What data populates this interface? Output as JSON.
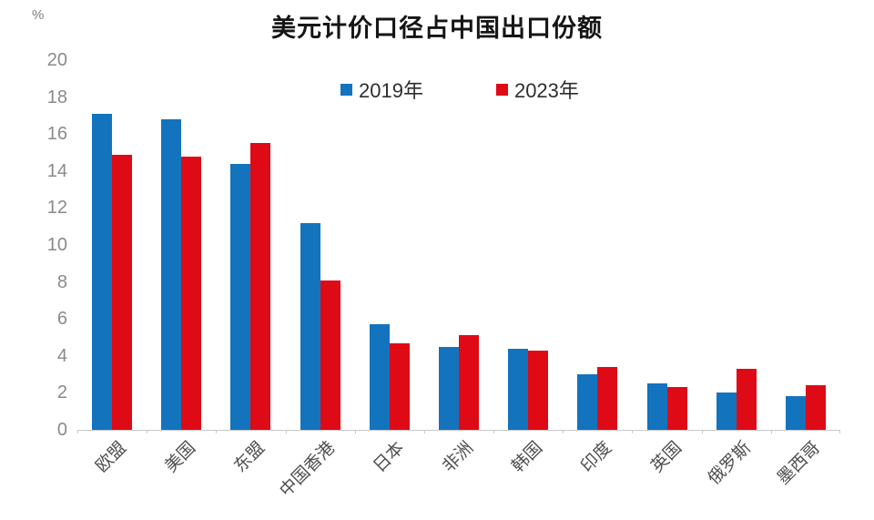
{
  "chart_data": {
    "type": "bar",
    "title": "美元计价口径占中国出口份额",
    "ylabel": "%",
    "xlabel": "",
    "ylim": [
      0,
      20
    ],
    "ytick_step": 2,
    "yticks": [
      0,
      2,
      4,
      6,
      8,
      10,
      12,
      14,
      16,
      18,
      20
    ],
    "grid": false,
    "legend_position": "top-center",
    "categories": [
      "欧盟",
      "美国",
      "东盟",
      "中国香港",
      "日本",
      "非洲",
      "韩国",
      "印度",
      "英国",
      "俄罗斯",
      "墨西哥"
    ],
    "series": [
      {
        "key": "2019",
        "name": "2019年",
        "color": "#1473BD",
        "values": [
          17.1,
          16.8,
          14.4,
          11.2,
          5.7,
          4.5,
          4.4,
          3.0,
          2.5,
          2.0,
          1.8
        ]
      },
      {
        "key": "2023",
        "name": "2023年",
        "color": "#DE0B17",
        "values": [
          14.9,
          14.8,
          15.5,
          8.1,
          4.7,
          5.1,
          4.3,
          3.4,
          2.3,
          3.3,
          2.4
        ]
      }
    ],
    "axis_color": "#c9c9c9"
  }
}
